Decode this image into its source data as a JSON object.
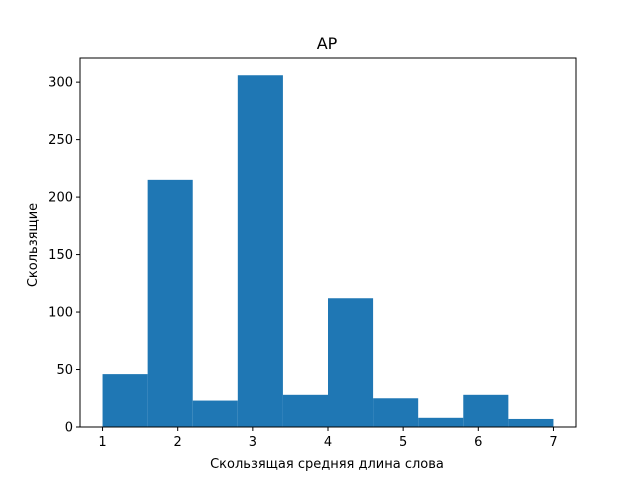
{
  "chart_data": {
    "type": "bar",
    "title": "AP",
    "xlabel": "Скользящая средняя длина слова",
    "ylabel": "Скользящие",
    "bar_color": "#1f77b4",
    "bins": [
      {
        "x0": 1.0,
        "x1": 1.6,
        "value": 46
      },
      {
        "x0": 1.6,
        "x1": 2.2,
        "value": 215
      },
      {
        "x0": 2.2,
        "x1": 2.8,
        "value": 23
      },
      {
        "x0": 2.8,
        "x1": 3.4,
        "value": 306
      },
      {
        "x0": 3.4,
        "x1": 4.0,
        "value": 28
      },
      {
        "x0": 4.0,
        "x1": 4.6,
        "value": 112
      },
      {
        "x0": 4.6,
        "x1": 5.2,
        "value": 25
      },
      {
        "x0": 5.2,
        "x1": 5.8,
        "value": 8
      },
      {
        "x0": 5.8,
        "x1": 6.4,
        "value": 28
      },
      {
        "x0": 6.4,
        "x1": 7.0,
        "value": 7
      }
    ],
    "xlim": [
      0.7,
      7.3
    ],
    "ylim": [
      0,
      321
    ],
    "xticks": [
      1,
      2,
      3,
      4,
      5,
      6,
      7
    ],
    "xtick_labels": [
      "1",
      "2",
      "3",
      "4",
      "5",
      "6",
      "7"
    ],
    "yticks": [
      0,
      50,
      100,
      150,
      200,
      250,
      300
    ],
    "ytick_labels": [
      "0",
      "50",
      "100",
      "150",
      "200",
      "250",
      "300"
    ],
    "grid": false,
    "legend": "none"
  }
}
